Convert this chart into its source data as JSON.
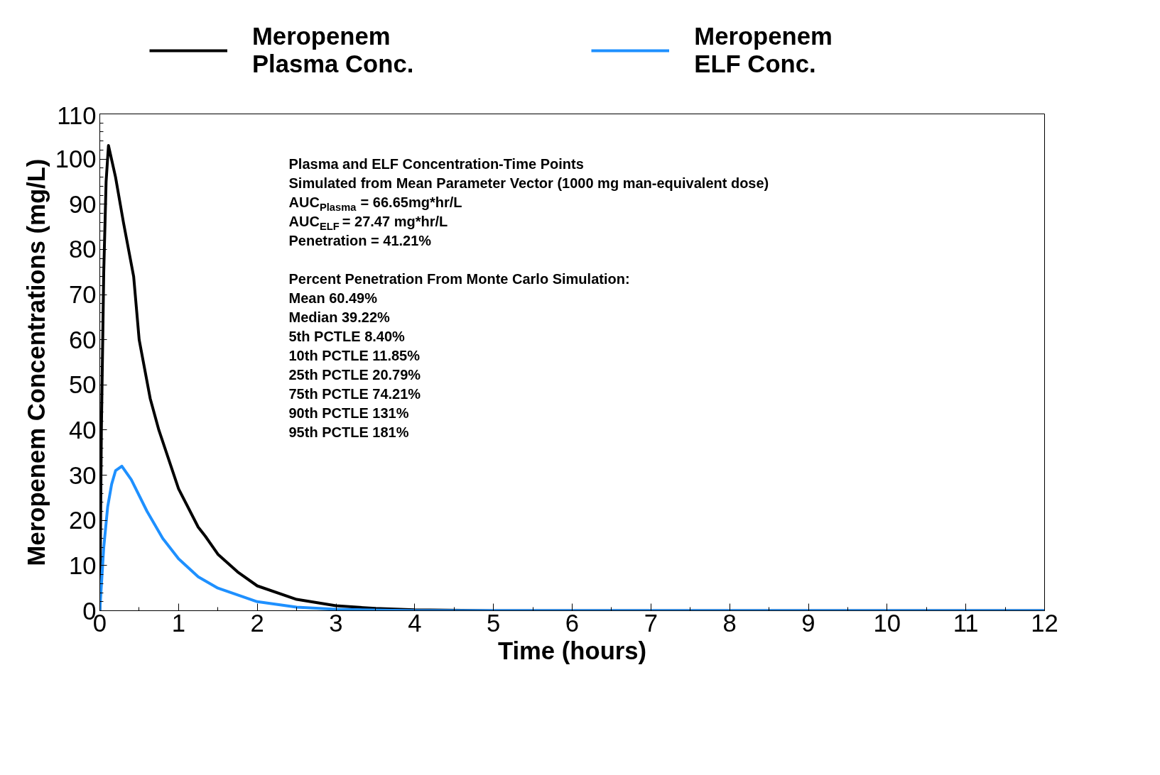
{
  "chart_data": {
    "type": "line",
    "xlabel": "Time (hours)",
    "ylabel": "Meropenem Concentrations (mg/L)",
    "xlim": [
      0,
      12
    ],
    "xticks": [
      0,
      1,
      2,
      3,
      4,
      5,
      6,
      7,
      8,
      9,
      10,
      11,
      12
    ],
    "ylim": [
      0,
      110
    ],
    "yticks": [
      0,
      10,
      20,
      30,
      40,
      50,
      60,
      70,
      80,
      90,
      100,
      110
    ],
    "grid": false,
    "legend": "top",
    "marker": "none",
    "line_style": "solid",
    "series": [
      {
        "name": "Meropenem Plasma Conc.",
        "color": "#000000",
        "x": [
          0,
          0.02,
          0.05,
          0.08,
          0.11,
          0.2,
          0.3,
          0.43,
          0.5,
          0.64,
          0.75,
          1,
          1.25,
          1.34,
          1.5,
          1.75,
          2,
          2.5,
          3,
          3.5,
          4,
          5,
          6,
          8,
          10,
          12
        ],
        "values": [
          0,
          40,
          75,
          95,
          103,
          96,
          86,
          74,
          60,
          47,
          40,
          27,
          18.5,
          16.5,
          12.5,
          8.6,
          5.5,
          2.5,
          1.1,
          0.5,
          0.2,
          0,
          0,
          0,
          0,
          0
        ]
      },
      {
        "name": "Meropenem ELF Conc.",
        "color": "#1e90ff",
        "x": [
          0,
          0.05,
          0.1,
          0.15,
          0.2,
          0.28,
          0.4,
          0.6,
          0.8,
          1,
          1.25,
          1.5,
          2,
          2.5,
          3,
          4,
          6,
          8,
          10,
          12
        ],
        "values": [
          0,
          14,
          23,
          28,
          31,
          32,
          29,
          22,
          16,
          11.5,
          7.5,
          5,
          2,
          0.8,
          0.3,
          0,
          0,
          0,
          0,
          0
        ]
      }
    ],
    "annotations": [
      "Plasma and ELF Concentration-Time Points",
      "Simulated from Mean Parameter Vector (1000 mg man-equivalent dose)",
      "AUC$_{Plasma}$ = 66.65mg*hr/L",
      "AUC$_{ELF}$ = 27.47 mg*hr/L",
      "Penetration = 41.21%",
      "Percent Penetration From Monte Carlo Simulation:",
      "Mean 60.49%",
      "Median 39.22%",
      "5th PCTLE 8.40%",
      "10th PCTLE 11.85%",
      "25th PCTLE 20.79%",
      "75th PCTLE 74.21%",
      "90th PCTLE 131%",
      "95th PCTLE 181%"
    ]
  }
}
